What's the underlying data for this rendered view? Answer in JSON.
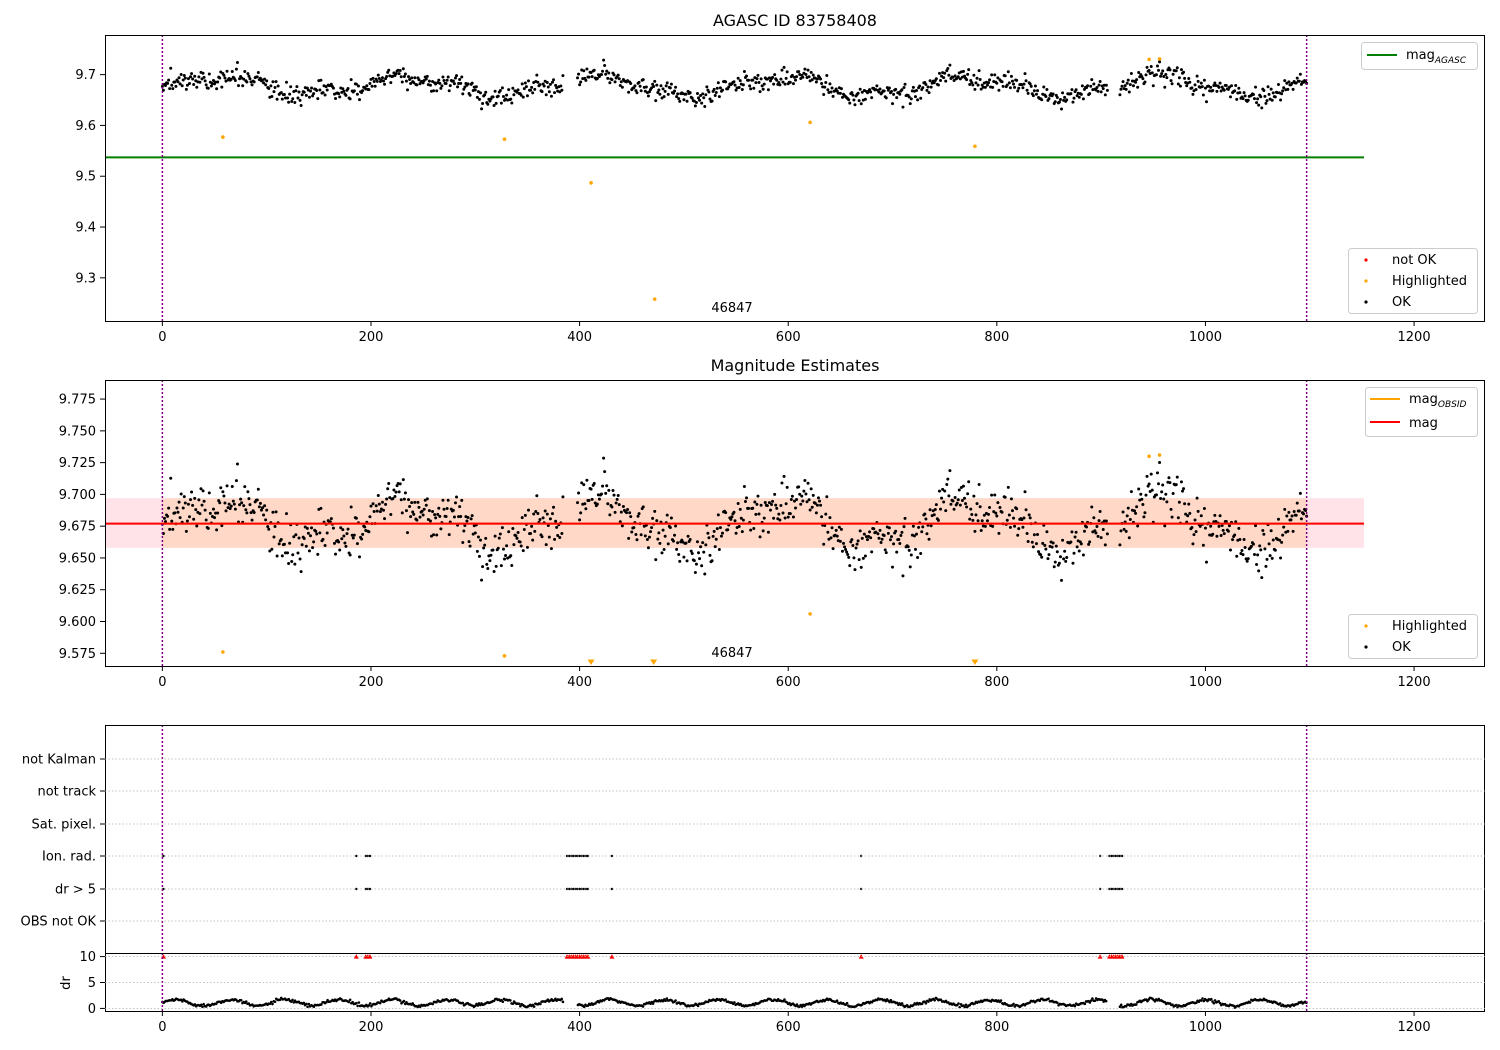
{
  "chart_data": [
    {
      "type": "scatter",
      "title": "AGASC ID 83758408",
      "xlim": [
        -55,
        1268
      ],
      "ylim": [
        9.215,
        9.778
      ],
      "x_ticks": [
        0,
        200,
        400,
        600,
        800,
        1000,
        1200
      ],
      "y_ticks": [
        9.3,
        9.4,
        9.5,
        9.6,
        9.7
      ],
      "obs_boundaries": [
        0,
        1097
      ],
      "obsid_label": "46847",
      "mag_agasc": 9.537,
      "ok_points": {
        "x_range": [
          0,
          1097
        ],
        "baseline": 9.677,
        "scatter": 0.015,
        "gaps": [
          [
            384,
            398
          ],
          [
            906,
            918
          ]
        ]
      },
      "highlighted_points": [
        {
          "x": 58,
          "y": 9.577
        },
        {
          "x": 328,
          "y": 9.573
        },
        {
          "x": 411,
          "y": 9.487
        },
        {
          "x": 472,
          "y": 9.258
        },
        {
          "x": 621,
          "y": 9.606
        },
        {
          "x": 779,
          "y": 9.559
        },
        {
          "x": 946,
          "y": 9.73
        },
        {
          "x": 956,
          "y": 9.731
        }
      ],
      "legend_lines": [
        {
          "label": "mag",
          "subscript": "AGASC",
          "color": "#008000"
        }
      ],
      "legend_markers": [
        {
          "label": "not OK",
          "color": "#ff0000"
        },
        {
          "label": "Highlighted",
          "color": "#ffa500"
        },
        {
          "label": "OK",
          "color": "#000000"
        }
      ]
    },
    {
      "type": "scatter",
      "title": "Magnitude Estimates",
      "xlim": [
        -55,
        1268
      ],
      "ylim": [
        9.565,
        9.79
      ],
      "x_ticks": [
        0,
        200,
        400,
        600,
        800,
        1000,
        1200
      ],
      "y_ticks": [
        9.575,
        9.6,
        9.625,
        9.65,
        9.675,
        9.7,
        9.725,
        9.75,
        9.775
      ],
      "obs_boundaries": [
        0,
        1097
      ],
      "obsid_label": "46847",
      "mag": 9.677,
      "mag_obsid": 9.677,
      "band_mag": [
        9.658,
        9.697
      ],
      "band_mag_obsid": [
        9.658,
        9.697
      ],
      "highlighted_points": [
        {
          "x": 58,
          "y": 9.576
        },
        {
          "x": 328,
          "y": 9.573
        },
        {
          "x": 621,
          "y": 9.606
        },
        {
          "x": 946,
          "y": 9.73
        },
        {
          "x": 956,
          "y": 9.731
        }
      ],
      "out_of_range_markers": [
        411,
        471,
        779
      ],
      "legend_lines": [
        {
          "label": "mag",
          "subscript": "OBSID",
          "color": "#ffa500"
        },
        {
          "label": "mag",
          "subscript": "",
          "color": "#ff0000"
        }
      ],
      "legend_markers": [
        {
          "label": "Highlighted",
          "color": "#ffa500"
        },
        {
          "label": "OK",
          "color": "#000000"
        }
      ]
    },
    {
      "type": "scatter",
      "title": "",
      "xlim": [
        -55,
        1268
      ],
      "x_ticks": [
        0,
        200,
        400,
        600,
        800,
        1000,
        1200
      ],
      "obs_boundaries": [
        0,
        1097
      ],
      "flag_rows": [
        "not Kalman",
        "not track",
        "Sat. pixel.",
        "Ion. rad.",
        "dr > 5",
        "OBS not OK"
      ],
      "flagged_x": [
        1,
        186,
        195,
        197,
        199,
        388,
        390,
        392,
        394,
        396,
        398,
        400,
        402,
        404,
        406,
        408,
        431,
        670,
        899,
        908,
        910,
        912,
        914,
        916,
        918,
        920
      ],
      "dr_ylabel": "dr",
      "dr_ylim": [
        -0.5,
        10.5
      ],
      "dr_ticks": [
        0,
        5,
        10
      ],
      "dr_clip_value": 10,
      "dr_baseline": 1.1
    }
  ],
  "colors": {
    "ok": "#000000",
    "highlighted": "#ffa500",
    "not_ok": "#ff0000",
    "mag_agasc": "#008000",
    "mag": "#ff0000",
    "mag_obsid": "#ffa500",
    "boundary": "#800080",
    "band_mag": "#ffc0cb",
    "band_obsid": "#ffd0b0"
  }
}
